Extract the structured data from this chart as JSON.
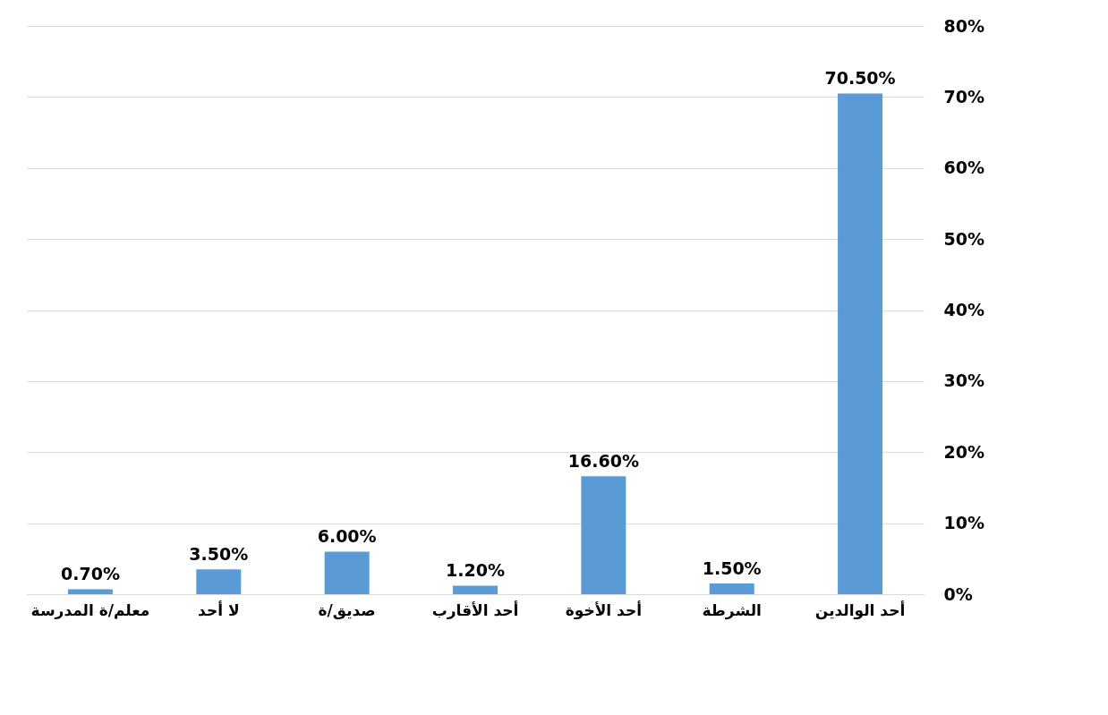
{
  "chart_data": {
    "type": "bar",
    "categories": [
      "معلم/ة المدرسة",
      "لا أحد",
      "صديق/ة",
      "أحد الأقارب",
      "أحد الأخوة",
      "الشرطة",
      "أحد الوالدين"
    ],
    "values": [
      0.7,
      3.5,
      6.0,
      1.2,
      16.6,
      1.5,
      70.5
    ],
    "value_labels": [
      "0.70%",
      "3.50%",
      "6.00%",
      "1.20%",
      "16.60%",
      "1.50%",
      "70.50%"
    ],
    "color": "#5b9bd5",
    "ylim": [
      0,
      80
    ],
    "yticks": [
      {
        "value": 0,
        "label": "0%"
      },
      {
        "value": 10,
        "label": "10%"
      },
      {
        "value": 20,
        "label": "20%"
      },
      {
        "value": 30,
        "label": "30%"
      },
      {
        "value": 40,
        "label": "40%"
      },
      {
        "value": 50,
        "label": "50%"
      },
      {
        "value": 60,
        "label": "60%"
      },
      {
        "value": 70,
        "label": "70%"
      },
      {
        "value": 80,
        "label": "80%"
      }
    ],
    "grid": "y"
  }
}
